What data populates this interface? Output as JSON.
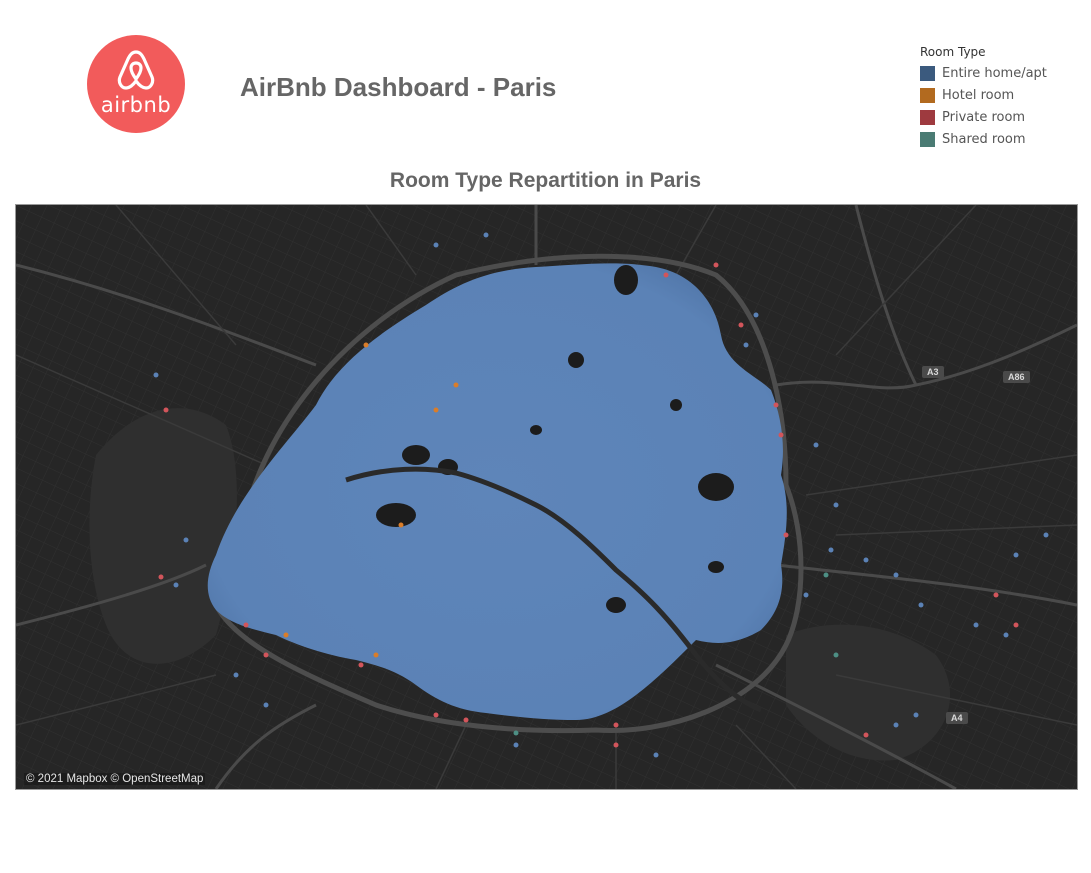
{
  "header": {
    "logo_text": "airbnb",
    "title": "AirBnb Dashboard - Paris"
  },
  "legend": {
    "title": "Room Type",
    "items": [
      {
        "label": "Entire home/apt",
        "color": "#3b5a7e"
      },
      {
        "label": "Hotel room",
        "color": "#b26a1f"
      },
      {
        "label": "Private room",
        "color": "#9e3a3f"
      },
      {
        "label": "Shared room",
        "color": "#4a7b73"
      }
    ]
  },
  "map": {
    "title": "Room Type Repartition in Paris",
    "attribution": "© 2021 Mapbox © OpenStreetMap",
    "road_labels": [
      "A3",
      "A86",
      "A4"
    ],
    "basemap_style": "dark",
    "points_color": "#5b82b6",
    "accent_colors": {
      "private": "#d2555b",
      "hotel": "#d97d2a",
      "shared": "#4d8f84"
    }
  },
  "brand_color": "#f25b5b"
}
